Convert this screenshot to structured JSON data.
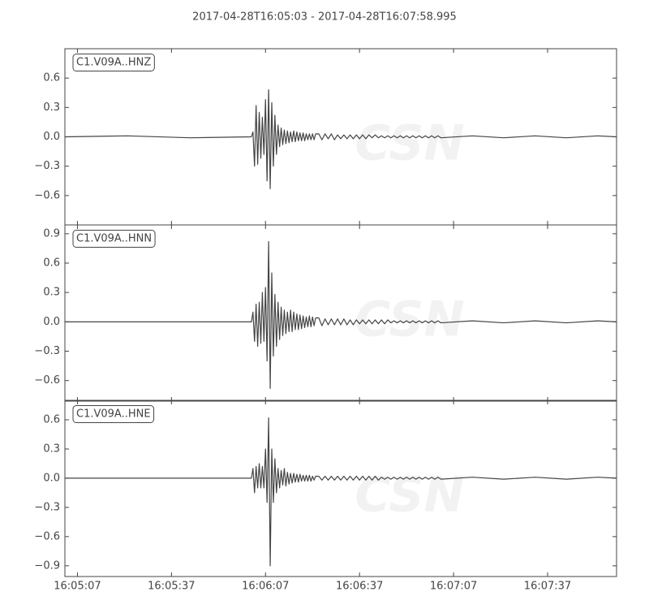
{
  "chart_data": [
    {
      "type": "line",
      "title": "2017-04-28T16:05:03  -  2017-04-28T16:07:58.995",
      "label": "C1.V09A..HNZ",
      "watermark": "CSN",
      "color": "#444444",
      "x": [
        0,
        20,
        40,
        59.5,
        60,
        60.5,
        61,
        61.5,
        62,
        62.5,
        63,
        63.5,
        64,
        64.5,
        65,
        65.5,
        66,
        66.5,
        67,
        67.5,
        68,
        68.5,
        69,
        69.5,
        70,
        70.5,
        71,
        71.5,
        72,
        72.5,
        73,
        73.5,
        74,
        74.5,
        75,
        75.5,
        76,
        76.5,
        77,
        77.5,
        78,
        78.5,
        79,
        79.5,
        80,
        81,
        82,
        83,
        84,
        85,
        86,
        87,
        88,
        89,
        90,
        91,
        92,
        93,
        94,
        95,
        96,
        97,
        98,
        99,
        100,
        101,
        102,
        103,
        104,
        105,
        106,
        107,
        108,
        109,
        110,
        111,
        112,
        113,
        114,
        115,
        116,
        117,
        118,
        119,
        120,
        130,
        140,
        150,
        160,
        170,
        176
      ],
      "values": [
        0,
        0.01,
        -0.01,
        0,
        0.05,
        -0.3,
        0.32,
        -0.28,
        0.25,
        -0.22,
        0.2,
        -0.18,
        0.38,
        -0.45,
        0.48,
        -0.53,
        0.35,
        -0.3,
        0.22,
        -0.18,
        0.12,
        -0.1,
        0.09,
        -0.08,
        0.07,
        -0.07,
        0.06,
        -0.06,
        0.05,
        -0.05,
        0.06,
        -0.05,
        0.05,
        -0.04,
        0.04,
        -0.04,
        0.04,
        -0.04,
        0.03,
        -0.03,
        0.03,
        -0.03,
        0.03,
        -0.03,
        0.03,
        0.03,
        -0.03,
        0.03,
        -0.02,
        0.03,
        -0.03,
        0.02,
        -0.02,
        0.02,
        -0.02,
        0.02,
        -0.02,
        0.02,
        -0.02,
        0.02,
        -0.02,
        0.02,
        -0.01,
        0.02,
        -0.01,
        0.01,
        -0.01,
        0.01,
        -0.01,
        0.01,
        -0.01,
        0.01,
        -0.01,
        0.01,
        -0.01,
        0.01,
        -0.01,
        0.01,
        -0.01,
        0.01,
        -0.01,
        0.01,
        -0.01,
        0.01,
        -0.01,
        0.01,
        -0.01,
        0.01,
        -0.01,
        0.01,
        0
      ],
      "xlim": [
        0,
        176
      ],
      "ylim": [
        -0.9,
        0.9
      ],
      "yticks": [
        0.6,
        0.3,
        {
          "value": 0,
          "label": "0.0"
        },
        {
          "value": -0.3,
          "label": "−0.3"
        },
        {
          "value": -0.6,
          "label": "−0.6"
        }
      ]
    },
    {
      "type": "line",
      "label": "C1.V09A..HNN",
      "color": "#444444",
      "x": [
        0,
        20,
        40,
        59.5,
        60,
        60.5,
        61,
        61.5,
        62,
        62.5,
        63,
        63.5,
        64,
        64.5,
        65,
        65.5,
        66,
        66.5,
        67,
        67.5,
        68,
        68.5,
        69,
        69.5,
        70,
        70.5,
        71,
        71.5,
        72,
        72.5,
        73,
        73.5,
        74,
        74.5,
        75,
        75.5,
        76,
        76.5,
        77,
        77.5,
        78,
        78.5,
        79,
        79.5,
        80,
        81,
        82,
        83,
        84,
        85,
        86,
        87,
        88,
        89,
        90,
        91,
        92,
        93,
        94,
        95,
        96,
        97,
        98,
        99,
        100,
        101,
        102,
        103,
        104,
        105,
        106,
        107,
        108,
        109,
        110,
        111,
        112,
        113,
        114,
        115,
        116,
        117,
        118,
        119,
        120,
        130,
        140,
        150,
        160,
        170,
        176
      ],
      "values": [
        0,
        0,
        0,
        0,
        0.1,
        -0.2,
        0.18,
        -0.25,
        0.2,
        -0.22,
        0.3,
        -0.2,
        0.35,
        -0.4,
        0.82,
        -0.68,
        0.5,
        -0.35,
        0.28,
        -0.25,
        0.2,
        -0.18,
        0.15,
        -0.14,
        0.12,
        -0.12,
        0.1,
        -0.1,
        0.12,
        -0.1,
        0.1,
        -0.08,
        0.08,
        -0.08,
        0.07,
        -0.07,
        0.06,
        -0.06,
        0.05,
        -0.05,
        0.06,
        -0.05,
        0.05,
        -0.04,
        0.04,
        0.04,
        -0.04,
        0.03,
        -0.03,
        0.03,
        -0.03,
        0.03,
        -0.03,
        0.03,
        -0.03,
        0.02,
        -0.03,
        0.02,
        -0.02,
        0.02,
        -0.02,
        0.02,
        -0.02,
        0.02,
        -0.02,
        0.02,
        -0.02,
        0.02,
        -0.01,
        0.01,
        -0.01,
        0.01,
        -0.01,
        0.01,
        -0.01,
        0.01,
        -0.01,
        0.01,
        -0.01,
        0.01,
        -0.01,
        0.01,
        -0.01,
        0.01,
        -0.01,
        0.01,
        -0.01,
        0.01,
        -0.01,
        0.01,
        0
      ],
      "xlim": [
        0,
        176
      ],
      "ylim": [
        -0.81,
        0.99
      ],
      "yticks": [
        0.9,
        0.6,
        0.3,
        {
          "value": 0,
          "label": "0.0"
        },
        {
          "value": -0.3,
          "label": "−0.3"
        },
        {
          "value": -0.6,
          "label": "−0.6"
        }
      ]
    },
    {
      "type": "line",
      "label": "C1.V09A..HNE",
      "color": "#444444",
      "x": [
        0,
        20,
        40,
        59.5,
        60,
        60.5,
        61,
        61.5,
        62,
        62.5,
        63,
        63.5,
        64,
        64.5,
        65,
        65.5,
        66,
        66.5,
        67,
        67.5,
        68,
        68.5,
        69,
        69.5,
        70,
        70.5,
        71,
        71.5,
        72,
        72.5,
        73,
        73.5,
        74,
        74.5,
        75,
        75.5,
        76,
        76.5,
        77,
        77.5,
        78,
        78.5,
        79,
        79.5,
        80,
        81,
        82,
        83,
        84,
        85,
        86,
        87,
        88,
        89,
        90,
        91,
        92,
        93,
        94,
        95,
        96,
        97,
        98,
        99,
        100,
        101,
        102,
        103,
        104,
        105,
        106,
        107,
        108,
        109,
        110,
        111,
        112,
        113,
        114,
        115,
        116,
        117,
        118,
        119,
        120,
        130,
        140,
        150,
        160,
        170,
        176
      ],
      "values": [
        0,
        0,
        0,
        0,
        0.1,
        -0.15,
        0.12,
        -0.1,
        0.15,
        -0.1,
        0.12,
        -0.1,
        0.3,
        -0.25,
        0.62,
        -0.9,
        0.3,
        -0.25,
        0.2,
        -0.15,
        0.1,
        -0.1,
        0.08,
        -0.07,
        0.1,
        -0.08,
        0.06,
        -0.06,
        0.05,
        -0.05,
        0.05,
        -0.04,
        0.04,
        -0.04,
        0.04,
        -0.03,
        0.03,
        -0.03,
        0.03,
        -0.03,
        0.03,
        -0.03,
        0.02,
        -0.02,
        0.02,
        0.02,
        -0.02,
        0.02,
        -0.02,
        0.02,
        -0.02,
        0.02,
        -0.02,
        0.02,
        -0.02,
        0.02,
        -0.02,
        0.02,
        -0.02,
        0.02,
        -0.02,
        0.02,
        -0.02,
        0.02,
        -0.02,
        0.01,
        -0.01,
        0.01,
        -0.01,
        0.01,
        -0.01,
        0.01,
        -0.01,
        0.01,
        -0.01,
        0.01,
        -0.01,
        0.01,
        -0.01,
        0.01,
        -0.01,
        0.01,
        -0.01,
        0.01,
        -0.01,
        0.01,
        -0.01,
        0.01,
        -0.01,
        0.01,
        0
      ],
      "xlim": [
        0,
        176
      ],
      "ylim": [
        -1.01,
        0.8
      ],
      "yticks": [
        0.6,
        0.3,
        {
          "value": 0,
          "label": "0.0"
        },
        {
          "value": -0.3,
          "label": "−0.3"
        },
        {
          "value": -0.6,
          "label": "−0.6"
        },
        {
          "value": -0.9,
          "label": "−0.9"
        }
      ],
      "xticks": [
        {
          "value": 4,
          "label": "16:05:07"
        },
        {
          "value": 34,
          "label": "16:05:37"
        },
        {
          "value": 64,
          "label": "16:06:07"
        },
        {
          "value": 94,
          "label": "16:06:37"
        },
        {
          "value": 124,
          "label": "16:07:07"
        },
        {
          "value": 154,
          "label": "16:07:37"
        }
      ]
    }
  ]
}
